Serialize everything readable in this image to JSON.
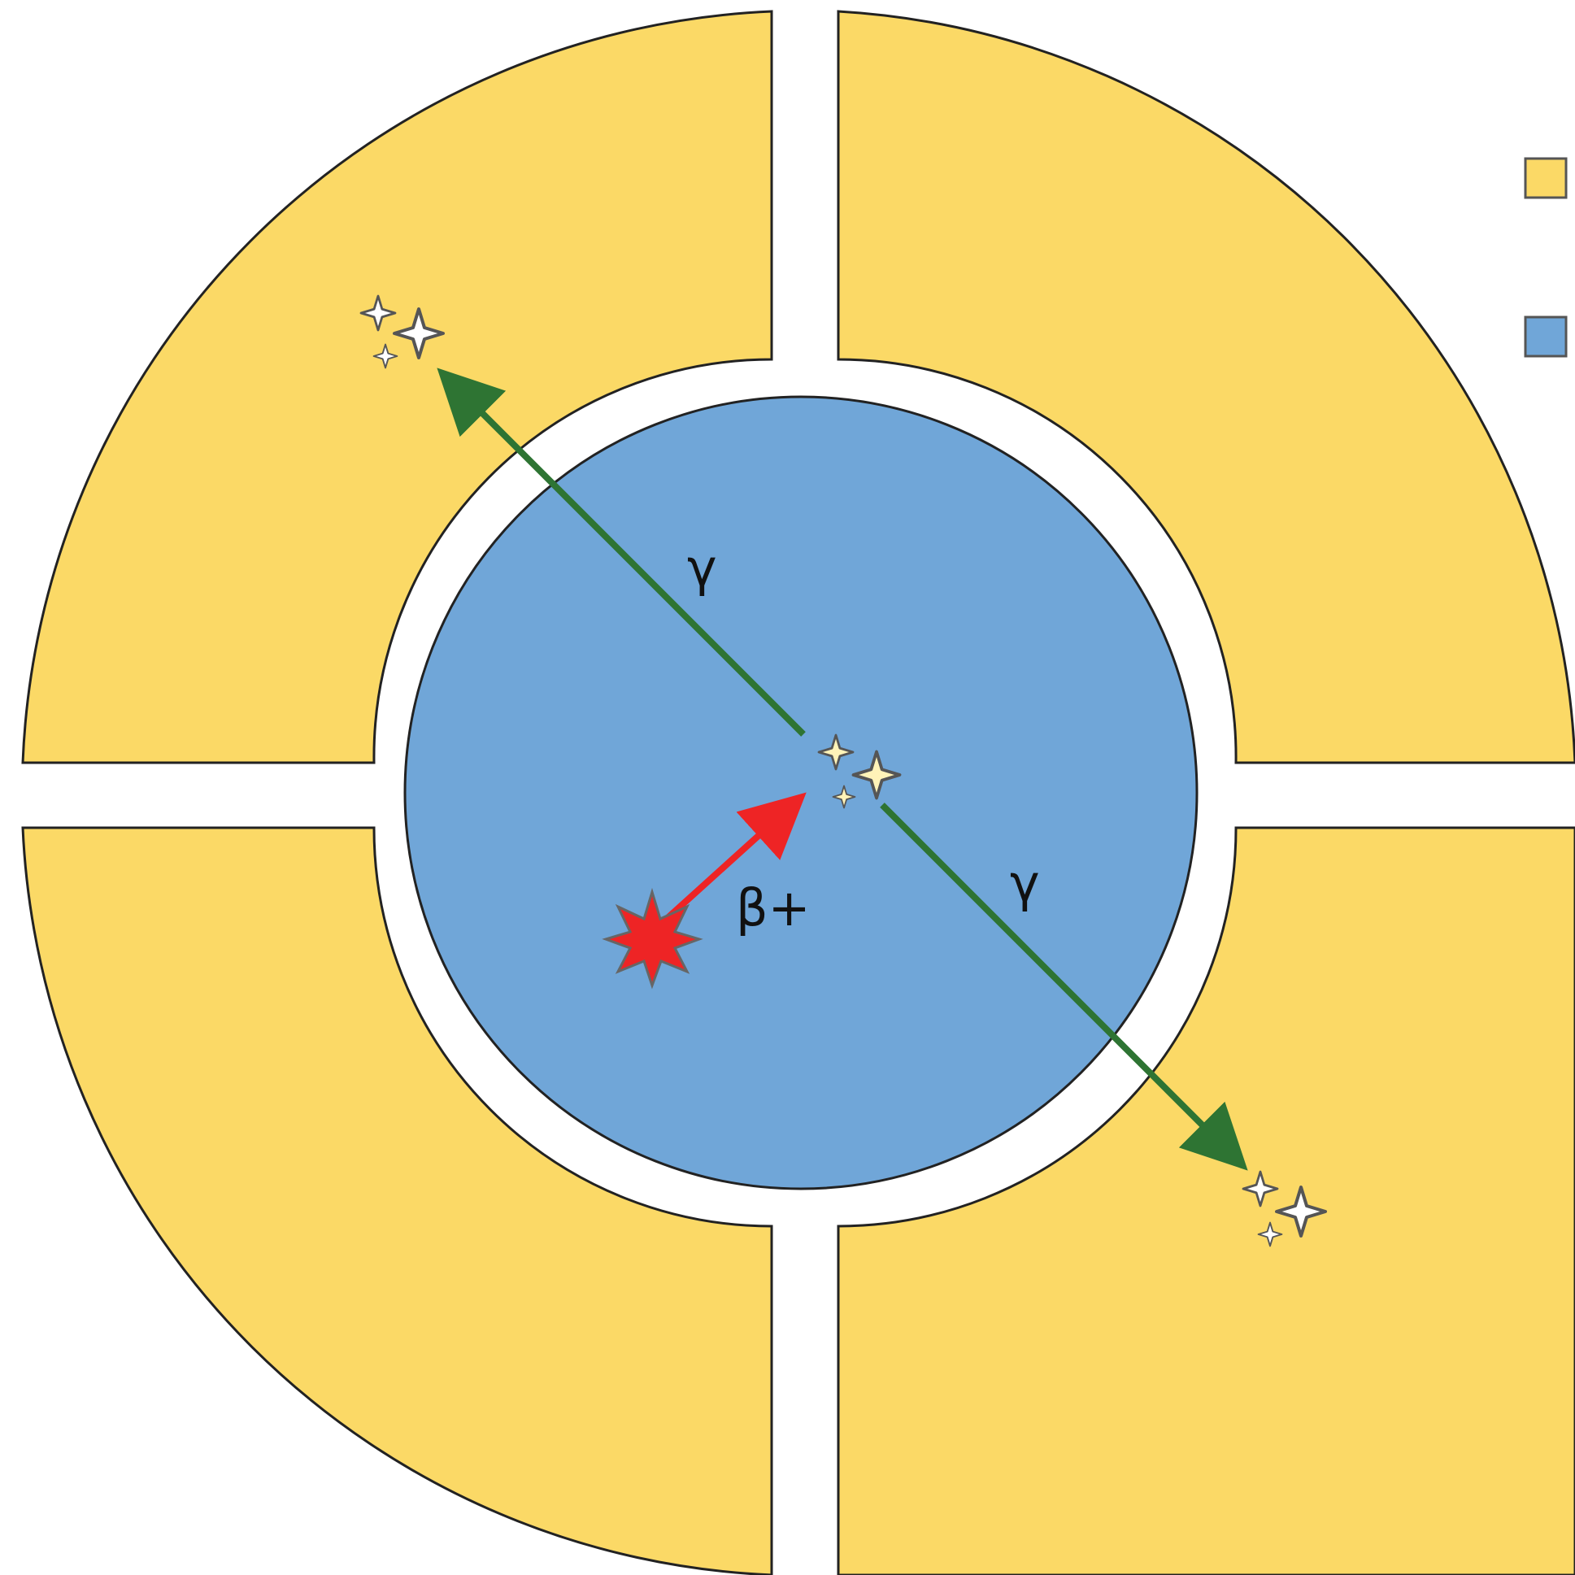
{
  "labels": {
    "gamma_upper": "γ",
    "gamma_lower": "γ",
    "positron": "β+"
  },
  "colors": {
    "detector": "#FBD966",
    "patient": "#70A6D8",
    "gamma_arrow": "#2E7433",
    "positron_arrow": "#EE2425",
    "source": "#EE2425",
    "sparkle_fill": "#FFFFFF",
    "sparkle_center_fill": "#FFF3B8",
    "outline": "#222222"
  },
  "legend": [
    {
      "swatch": "detector"
    },
    {
      "swatch": "patient"
    }
  ],
  "icons": {
    "source": "starburst-icon",
    "annihilation": "sparkle-icon",
    "detection": "sparkle-icon"
  }
}
